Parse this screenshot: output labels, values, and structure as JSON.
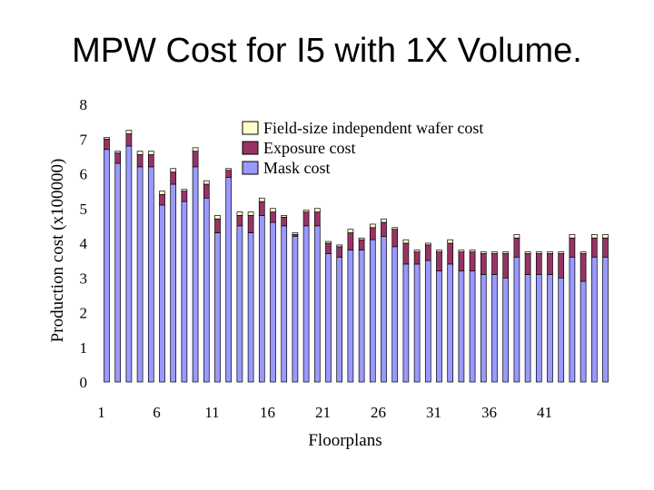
{
  "slide": {
    "title": "MPW Cost for I5 with 1X Volume."
  },
  "chart_data": {
    "type": "bar",
    "stacked": true,
    "xlabel": "Floorplans",
    "ylabel": "Production cost  (x100000)",
    "ylim": [
      0,
      8
    ],
    "yticks": [
      0,
      1,
      2,
      3,
      4,
      5,
      6,
      7,
      8
    ],
    "xtick_labels": [
      "1",
      "6",
      "11",
      "16",
      "21",
      "26",
      "31",
      "36",
      "41"
    ],
    "xtick_positions": [
      1,
      6,
      11,
      16,
      21,
      26,
      31,
      36,
      41
    ],
    "grid": false,
    "legend_placement": "top-right",
    "categories": [
      1,
      2,
      3,
      4,
      5,
      6,
      7,
      8,
      9,
      10,
      11,
      12,
      13,
      14,
      15,
      16,
      17,
      18,
      19,
      20,
      21,
      22,
      23,
      24,
      25,
      26,
      27,
      28,
      29,
      30,
      31,
      32,
      33,
      34,
      35,
      36,
      37,
      38,
      39,
      40,
      41,
      42,
      43,
      44,
      45,
      46
    ],
    "series": [
      {
        "name": "Mask cost",
        "color": "#9999ff",
        "values": [
          6.7,
          6.3,
          6.8,
          6.2,
          6.2,
          5.1,
          5.7,
          5.2,
          6.2,
          5.3,
          4.3,
          5.9,
          4.5,
          4.3,
          4.8,
          4.6,
          4.5,
          4.2,
          4.5,
          4.5,
          3.7,
          3.6,
          3.8,
          3.8,
          4.1,
          4.2,
          3.9,
          3.4,
          3.4,
          3.5,
          3.2,
          3.4,
          3.2,
          3.2,
          3.1,
          3.1,
          3.0,
          3.6,
          3.1,
          3.1,
          3.1,
          3.0,
          3.6,
          2.9,
          3.6,
          3.6
        ]
      },
      {
        "name": "Exposure cost",
        "color": "#993366",
        "values": [
          0.3,
          0.3,
          0.35,
          0.35,
          0.35,
          0.3,
          0.35,
          0.3,
          0.45,
          0.4,
          0.4,
          0.2,
          0.3,
          0.5,
          0.4,
          0.3,
          0.25,
          0.05,
          0.4,
          0.4,
          0.3,
          0.3,
          0.5,
          0.3,
          0.35,
          0.4,
          0.5,
          0.6,
          0.35,
          0.45,
          0.55,
          0.6,
          0.55,
          0.55,
          0.6,
          0.6,
          0.7,
          0.55,
          0.6,
          0.6,
          0.6,
          0.7,
          0.55,
          0.8,
          0.55,
          0.55
        ]
      },
      {
        "name": "Field-size independent wafer cost",
        "color": "#ffffcc",
        "values": [
          0.05,
          0.05,
          0.1,
          0.1,
          0.1,
          0.1,
          0.1,
          0.05,
          0.1,
          0.1,
          0.1,
          0.05,
          0.1,
          0.1,
          0.1,
          0.1,
          0.05,
          0.05,
          0.05,
          0.1,
          0.05,
          0.05,
          0.1,
          0.05,
          0.1,
          0.1,
          0.05,
          0.1,
          0.05,
          0.05,
          0.05,
          0.1,
          0.05,
          0.05,
          0.05,
          0.05,
          0.05,
          0.1,
          0.05,
          0.05,
          0.05,
          0.05,
          0.1,
          0.05,
          0.1,
          0.1
        ]
      }
    ]
  }
}
